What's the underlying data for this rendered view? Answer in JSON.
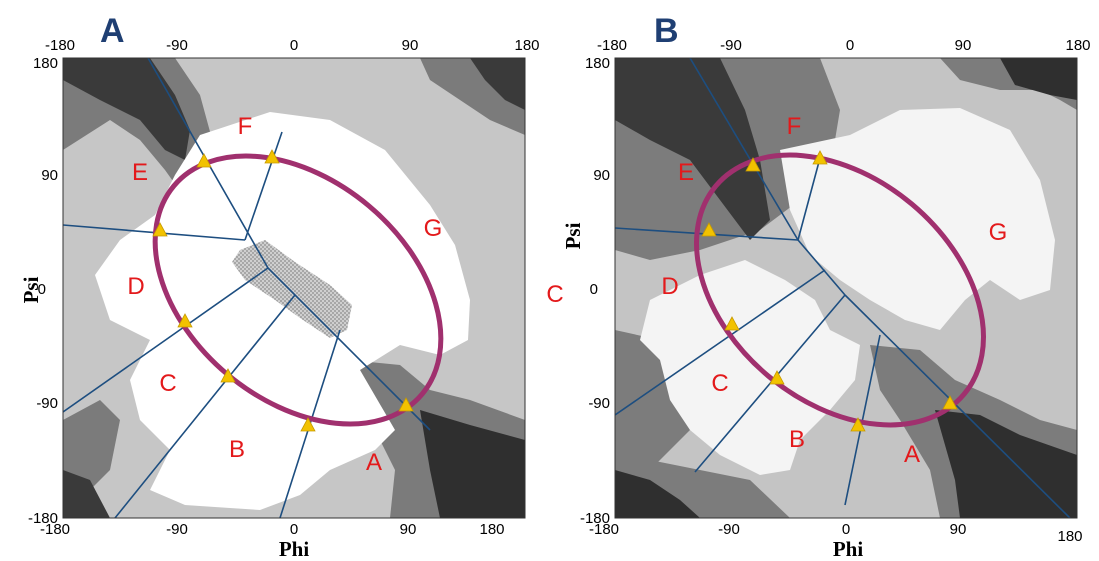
{
  "panel_a": {
    "label": "A",
    "top_ticks": [
      "-180",
      "-90",
      "0",
      "90",
      "180"
    ],
    "bottom_ticks": [
      "-180",
      "-90",
      "0",
      "90",
      "180"
    ],
    "left_ticks": [
      "180",
      "90",
      "0",
      "-90",
      "-180"
    ],
    "x_title": "Phi",
    "y_title": "Psi",
    "regions": [
      "F",
      "E",
      "G",
      "D",
      "C",
      "B",
      "A"
    ]
  },
  "panel_b": {
    "label": "B",
    "top_ticks": [
      "-180",
      "-90",
      "0",
      "90",
      "180"
    ],
    "bottom_ticks": [
      "-180",
      "-90",
      "0",
      "90",
      "180"
    ],
    "left_ticks": [
      "180",
      "90",
      "0",
      "-90",
      "-180"
    ],
    "x_title": "Phi",
    "y_title": "Psi",
    "regions": [
      "F",
      "E",
      "G",
      "D",
      "C",
      "B",
      "A"
    ]
  },
  "extra_label": "C",
  "colors": {
    "ellipse": "#a0306e",
    "spokes": "#1d4e80",
    "markers": "#f2c200",
    "region_labels": "#e3191b",
    "panel_labels": "#1f3f73"
  }
}
